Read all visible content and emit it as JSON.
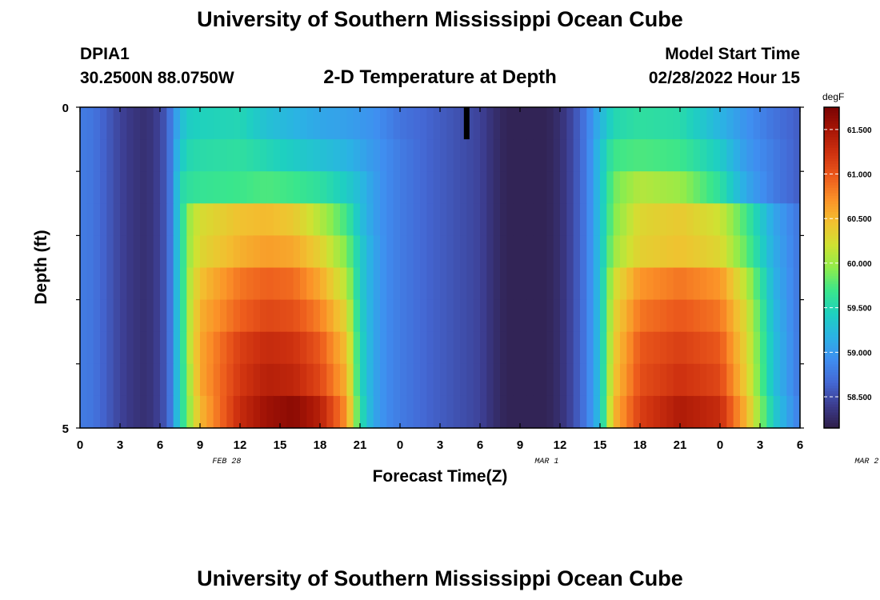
{
  "header": {
    "title": "University of Southern Mississippi Ocean Cube",
    "station": "DPIA1",
    "coords": "30.2500N  88.0750W",
    "subtitle": "2-D Temperature at Depth",
    "model_start_label": "Model Start Time",
    "model_start_value": "02/28/2022 Hour 15"
  },
  "footer": {
    "title": "University of Southern Mississippi Ocean Cube"
  },
  "chart_data": {
    "type": "heatmap",
    "xlabel": "Forecast Time(Z)",
    "ylabel": "Depth (ft)",
    "x_tick_labels": [
      "0",
      "3",
      "6",
      "9",
      "12",
      "15",
      "18",
      "21",
      "0",
      "3",
      "6",
      "9",
      "12",
      "15",
      "18",
      "21",
      "0",
      "3",
      "6"
    ],
    "date_labels": [
      {
        "hour": 11,
        "text": "FEB 28"
      },
      {
        "hour": 35,
        "text": "MAR 1"
      },
      {
        "hour": 59,
        "text": "MAR 2"
      }
    ],
    "xlim": [
      0,
      54
    ],
    "ylim": [
      0,
      5
    ],
    "y_tick_labels": [
      "0",
      "5"
    ],
    "depth_levels_ft": [
      0.25,
      0.75,
      1.25,
      1.75,
      2.25,
      2.75,
      3.25,
      3.75,
      4.25,
      4.75
    ],
    "colorbar": {
      "units": "degF",
      "min": 58.15,
      "max": 61.75,
      "tick_values": [
        58.5,
        59.0,
        59.5,
        60.0,
        60.5,
        61.0,
        61.5
      ],
      "tick_labels": [
        "58.500",
        "59.000",
        "59.500",
        "60.000",
        "60.500",
        "61.000",
        "61.500"
      ],
      "colors": [
        "#2f1e48",
        "#3c3c8e",
        "#4468d4",
        "#3f8ef0",
        "#2bb2e4",
        "#1ed0c0",
        "#3ae68c",
        "#8eec4c",
        "#cfe232",
        "#f2c030",
        "#fb9128",
        "#ec5a1c",
        "#cf3210",
        "#a81606",
        "#7a0403"
      ]
    },
    "temperature_profiles": [
      {
        "depth_range_ft": [
          0,
          0.5
        ],
        "hours": [
          0,
          1,
          2,
          3,
          4,
          5,
          6,
          6.5,
          7,
          7.3,
          7.7,
          8,
          9,
          12,
          14,
          16,
          18,
          20,
          21,
          22,
          23,
          24,
          26,
          28,
          30,
          31,
          32,
          33,
          34,
          35,
          36,
          37,
          38,
          39,
          40,
          42,
          45,
          48,
          50,
          52,
          54
        ],
        "values": [
          58.8,
          58.75,
          58.6,
          58.45,
          58.35,
          58.3,
          58.45,
          58.6,
          58.9,
          59.1,
          59.3,
          59.4,
          59.45,
          59.5,
          59.3,
          59.2,
          59.1,
          59.05,
          59.0,
          58.95,
          58.85,
          58.75,
          58.65,
          58.55,
          58.45,
          58.3,
          58.2,
          58.2,
          58.2,
          58.2,
          58.3,
          58.5,
          58.8,
          59.2,
          59.5,
          59.6,
          59.55,
          59.2,
          58.95,
          58.75,
          58.6
        ]
      },
      {
        "depth_range_ft": [
          0.5,
          1.0
        ],
        "hours": [
          0,
          1,
          2,
          3,
          4,
          5,
          6,
          6.5,
          7,
          7.3,
          7.7,
          8,
          9,
          12,
          14,
          16,
          18,
          20,
          21,
          22,
          23,
          24,
          26,
          28,
          30,
          31,
          32,
          33,
          34,
          35,
          36,
          37,
          38,
          39,
          40,
          42,
          45,
          48,
          50,
          52,
          54
        ],
        "values": [
          58.8,
          58.75,
          58.6,
          58.45,
          58.35,
          58.3,
          58.45,
          58.6,
          58.9,
          59.2,
          59.4,
          59.5,
          59.55,
          59.6,
          59.5,
          59.4,
          59.3,
          59.2,
          59.1,
          59.0,
          58.9,
          58.8,
          58.65,
          58.55,
          58.45,
          58.3,
          58.2,
          58.2,
          58.2,
          58.2,
          58.3,
          58.5,
          58.8,
          59.3,
          59.7,
          59.75,
          59.7,
          59.4,
          59.0,
          58.8,
          58.6
        ]
      },
      {
        "depth_range_ft": [
          1.0,
          1.5
        ],
        "hours": [
          0,
          1,
          2,
          3,
          4,
          5,
          6,
          6.5,
          7,
          7.3,
          7.7,
          8,
          9,
          12,
          14,
          16,
          18,
          20,
          21,
          22,
          23,
          24,
          26,
          28,
          30,
          31,
          32,
          33,
          34,
          35,
          36,
          37,
          38,
          39,
          40,
          42,
          45,
          48,
          50,
          52,
          54
        ],
        "values": [
          58.8,
          58.75,
          58.6,
          58.45,
          58.35,
          58.3,
          58.45,
          58.6,
          58.9,
          59.3,
          59.55,
          59.6,
          59.65,
          59.7,
          59.75,
          59.7,
          59.6,
          59.4,
          59.25,
          59.05,
          58.9,
          58.8,
          58.65,
          58.55,
          58.45,
          58.3,
          58.2,
          58.2,
          58.2,
          58.2,
          58.3,
          58.5,
          58.8,
          59.3,
          59.85,
          60.1,
          60.0,
          59.6,
          59.1,
          58.8,
          58.6
        ]
      },
      {
        "depth_range_ft": [
          1.5,
          2.0
        ],
        "hours": [
          0,
          1,
          2,
          3,
          4,
          5,
          6,
          6.5,
          7,
          7.3,
          7.7,
          8,
          9,
          12,
          14,
          16,
          18,
          20,
          21,
          22,
          23,
          24,
          26,
          28,
          30,
          31,
          32,
          33,
          34,
          35,
          36,
          37,
          38,
          39,
          40,
          42,
          45,
          48,
          50,
          52,
          54
        ],
        "values": [
          58.8,
          58.75,
          58.6,
          58.45,
          58.35,
          58.3,
          58.45,
          58.6,
          58.9,
          59.3,
          59.6,
          59.95,
          60.25,
          60.45,
          60.5,
          60.4,
          60.1,
          59.7,
          59.3,
          59.05,
          58.9,
          58.8,
          58.65,
          58.55,
          58.45,
          58.3,
          58.2,
          58.2,
          58.2,
          58.2,
          58.3,
          58.5,
          58.8,
          59.3,
          59.9,
          60.3,
          60.4,
          60.2,
          59.7,
          59.1,
          58.75
        ]
      },
      {
        "depth_range_ft": [
          2.0,
          2.5
        ],
        "hours": [
          0,
          1,
          2,
          3,
          4,
          5,
          6,
          6.5,
          7,
          7.3,
          7.7,
          8,
          9,
          12,
          14,
          16,
          18,
          20,
          21,
          22,
          23,
          24,
          26,
          28,
          30,
          31,
          32,
          33,
          34,
          35,
          36,
          37,
          38,
          39,
          40,
          42,
          45,
          48,
          50,
          52,
          54
        ],
        "values": [
          58.8,
          58.75,
          58.6,
          58.45,
          58.35,
          58.3,
          58.45,
          58.6,
          58.9,
          59.3,
          59.6,
          59.95,
          60.3,
          60.55,
          60.65,
          60.6,
          60.35,
          59.9,
          59.4,
          59.1,
          58.9,
          58.8,
          58.65,
          58.55,
          58.45,
          58.3,
          58.2,
          58.2,
          58.2,
          58.2,
          58.3,
          58.5,
          58.8,
          59.3,
          60.0,
          60.35,
          60.45,
          60.3,
          59.8,
          59.15,
          58.75
        ]
      },
      {
        "depth_range_ft": [
          2.5,
          3.0
        ],
        "hours": [
          0,
          1,
          2,
          3,
          4,
          5,
          6,
          6.5,
          7,
          7.3,
          7.7,
          8,
          9,
          12,
          14,
          16,
          18,
          20,
          21,
          22,
          23,
          24,
          26,
          28,
          30,
          31,
          32,
          33,
          34,
          35,
          36,
          37,
          38,
          39,
          40,
          42,
          45,
          48,
          50,
          52,
          54
        ],
        "values": [
          58.8,
          58.75,
          58.6,
          58.45,
          58.35,
          58.3,
          58.45,
          58.6,
          58.9,
          59.3,
          59.6,
          60.0,
          60.45,
          60.85,
          60.95,
          60.9,
          60.6,
          60.1,
          59.4,
          59.1,
          58.9,
          58.8,
          58.65,
          58.55,
          58.45,
          58.3,
          58.2,
          58.2,
          58.2,
          58.2,
          58.3,
          58.5,
          58.8,
          59.3,
          60.2,
          60.7,
          60.85,
          60.7,
          60.1,
          59.2,
          58.75
        ]
      },
      {
        "depth_range_ft": [
          3.0,
          3.5
        ],
        "hours": [
          0,
          1,
          2,
          3,
          4,
          5,
          6,
          6.5,
          7,
          7.3,
          7.7,
          8,
          9,
          12,
          14,
          16,
          18,
          20,
          21,
          22,
          23,
          24,
          26,
          28,
          30,
          31,
          32,
          33,
          34,
          35,
          36,
          37,
          38,
          39,
          40,
          42,
          45,
          48,
          50,
          52,
          54
        ],
        "values": [
          58.8,
          58.75,
          58.6,
          58.45,
          58.35,
          58.3,
          58.45,
          58.6,
          58.9,
          59.3,
          59.6,
          60.0,
          60.55,
          60.95,
          61.1,
          61.05,
          60.8,
          60.3,
          59.45,
          59.1,
          58.9,
          58.8,
          58.65,
          58.55,
          58.45,
          58.3,
          58.2,
          58.2,
          58.2,
          58.2,
          58.3,
          58.5,
          58.8,
          59.3,
          60.3,
          60.85,
          61.0,
          60.85,
          60.25,
          59.25,
          58.75
        ]
      },
      {
        "depth_range_ft": [
          3.5,
          4.0
        ],
        "hours": [
          0,
          1,
          2,
          3,
          4,
          5,
          6,
          6.5,
          7,
          7.3,
          7.7,
          8,
          9,
          12,
          14,
          16,
          18,
          20,
          21,
          22,
          23,
          24,
          26,
          28,
          30,
          31,
          32,
          33,
          34,
          35,
          36,
          37,
          38,
          39,
          40,
          42,
          45,
          48,
          50,
          52,
          54
        ],
        "values": [
          58.8,
          58.75,
          58.6,
          58.45,
          58.35,
          58.3,
          58.45,
          58.6,
          58.9,
          59.3,
          59.6,
          60.0,
          60.6,
          61.15,
          61.3,
          61.25,
          61.0,
          60.45,
          59.5,
          59.1,
          58.9,
          58.8,
          58.65,
          58.55,
          58.45,
          58.3,
          58.2,
          58.2,
          58.2,
          58.2,
          58.3,
          58.5,
          58.8,
          59.3,
          60.35,
          61.0,
          61.15,
          61.0,
          60.3,
          59.3,
          58.75
        ]
      },
      {
        "depth_range_ft": [
          4.0,
          4.5
        ],
        "hours": [
          0,
          1,
          2,
          3,
          4,
          5,
          6,
          6.5,
          7,
          7.3,
          7.7,
          8,
          9,
          12,
          14,
          16,
          18,
          20,
          21,
          22,
          23,
          24,
          26,
          28,
          30,
          31,
          32,
          33,
          34,
          35,
          36,
          37,
          38,
          39,
          40,
          42,
          45,
          48,
          50,
          52,
          54
        ],
        "values": [
          58.8,
          58.75,
          58.6,
          58.45,
          58.35,
          58.3,
          58.45,
          58.6,
          58.9,
          59.3,
          59.6,
          59.9,
          60.6,
          61.2,
          61.4,
          61.35,
          61.1,
          60.55,
          59.5,
          59.1,
          58.9,
          58.8,
          58.65,
          58.55,
          58.45,
          58.3,
          58.2,
          58.2,
          58.2,
          58.2,
          58.3,
          58.5,
          58.8,
          59.3,
          60.4,
          61.05,
          61.25,
          61.1,
          60.35,
          59.3,
          58.75
        ]
      },
      {
        "depth_range_ft": [
          4.5,
          5.0
        ],
        "hours": [
          0,
          1,
          2,
          3,
          4,
          5,
          6,
          6.5,
          7,
          7.3,
          7.7,
          8,
          9,
          12,
          14,
          16,
          18,
          20,
          21,
          22,
          23,
          24,
          26,
          28,
          30,
          31,
          32,
          33,
          34,
          35,
          36,
          37,
          38,
          39,
          40,
          42,
          45,
          48,
          50,
          52,
          54
        ],
        "values": [
          58.8,
          58.75,
          58.6,
          58.45,
          58.35,
          58.3,
          58.45,
          58.6,
          58.9,
          59.3,
          59.6,
          59.85,
          60.5,
          61.3,
          61.55,
          61.65,
          61.4,
          60.7,
          59.6,
          59.1,
          58.9,
          58.8,
          58.65,
          58.55,
          58.45,
          58.3,
          58.2,
          58.2,
          58.2,
          58.2,
          58.3,
          58.5,
          58.8,
          59.3,
          60.5,
          61.15,
          61.45,
          61.3,
          60.5,
          59.4,
          58.8
        ]
      }
    ],
    "marker": {
      "hour": 29,
      "depth_range_ft": [
        0,
        0.5
      ],
      "color": "#000000"
    },
    "grid": false,
    "legend": "colorbar-right"
  }
}
